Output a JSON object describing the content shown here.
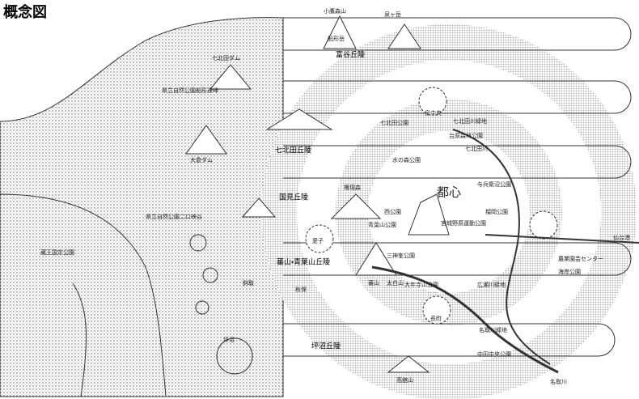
{
  "header": {
    "title": "概念図"
  },
  "regions": [
    "県立自然公園船形連峰",
    "県立自然公園二口峡谷",
    "蔵王国定公園"
  ],
  "hills": [
    "富谷丘陵",
    "七北田丘陵",
    "国見丘陵",
    "蕃山・青葉山丘陵",
    "坪沼丘陵"
  ],
  "center": "都心",
  "hubs": [
    "泉中央",
    "愛子",
    "長町",
    "仙台港"
  ],
  "mountains": [
    "小鷹森山",
    "泉ヶ岳",
    "船形岳",
    "七北田ダム",
    "大倉ダム",
    "権現森",
    "蕃山",
    "太白山",
    "高舘山"
  ],
  "places": [
    "七北田公園",
    "七北田川緑地",
    "台原森林公園",
    "水の森公園",
    "与兵衛沼公園",
    "榴岡公園",
    "宮城野原運動公園",
    "三神峯公園",
    "大年寺山公園",
    "広瀬川緑地",
    "名取川緑地",
    "中田中央公園",
    "海岸公園",
    "農業園芸センター",
    "青葉山公園",
    "西公園",
    "坪沼",
    "鈎取",
    "秋保"
  ],
  "rivers": [
    "七北田川",
    "名取川"
  ]
}
